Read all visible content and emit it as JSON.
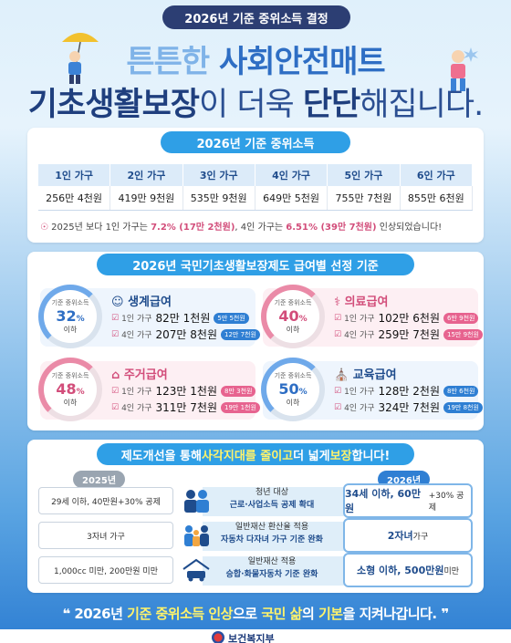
{
  "banner": "2026년 기준 중위소득 결정",
  "hero": {
    "line1_a": "튼튼한 ",
    "line1_b": "사회안전매트",
    "line2_a": "기초생활보장",
    "line2_b": "이 더욱 ",
    "line2_c": "단단",
    "line2_d": "해집니다."
  },
  "income": {
    "title": "2026년 기준 중위소득",
    "headers": [
      "1인 가구",
      "2인 가구",
      "3인 가구",
      "4인 가구",
      "5인 가구",
      "6인 가구"
    ],
    "values": [
      "256만 4천원",
      "419만 9천원",
      "535만 9천원",
      "649만 5천원",
      "755만 7천원",
      "855만 6천원"
    ],
    "note_a": "2025년 보다 1인 가구는 ",
    "note_b": "7.2% (17만 2천원)",
    "note_c": ", 4인 가구는 ",
    "note_d": "6.51% (39만 7천원)",
    "note_e": " 인상되었습니다!"
  },
  "benefits": {
    "title": "2026년 국민기초생활보장제도 급여별 선정 기준",
    "items": [
      {
        "name": "생계급여",
        "label": "기준 중위소득",
        "pct": "32",
        "sub": "이하",
        "r1_label": "1인 가구",
        "r1_amt": "82만 1천원",
        "r1_tag": "5만 5천원",
        "r2_label": "4인 가구",
        "r2_amt": "207만 8천원",
        "r2_tag": "12만 7천원"
      },
      {
        "name": "의료급여",
        "label": "기준 중위소득",
        "pct": "40",
        "sub": "이하",
        "r1_label": "1인 가구",
        "r1_amt": "102만 6천원",
        "r1_tag": "6만 9천원",
        "r2_label": "4인 가구",
        "r2_amt": "259만 7천원",
        "r2_tag": "15만 9천원"
      },
      {
        "name": "주거급여",
        "label": "기준 중위소득",
        "pct": "48",
        "sub": "이하",
        "r1_label": "1인 가구",
        "r1_amt": "123만 1천원",
        "r1_tag": "8만 3천원",
        "r2_label": "4인 가구",
        "r2_amt": "311만 7천원",
        "r2_tag": "19만 1천원"
      },
      {
        "name": "교육급여",
        "label": "기준 중위소득",
        "pct": "50",
        "sub": "이하",
        "r1_label": "1인 가구",
        "r1_amt": "128만 2천원",
        "r1_tag": "8만 6천원",
        "r2_label": "4인 가구",
        "r2_amt": "324만 7천원",
        "r2_tag": "19만 8천원"
      }
    ]
  },
  "reform": {
    "title_a": "제도개선을 통해 ",
    "title_b": "사각지대를 줄이고",
    "title_c": " 더 넓게 ",
    "title_d": "보장",
    "title_e": "합니다!",
    "year_old": "2025년",
    "year_new": "2026년",
    "rows": [
      {
        "old": "29세 이하, 40만원+30% 공제",
        "mid1": "청년 대상",
        "mid2": "근로·사업소득 공제 확대",
        "new_a": "34세 이하, 60만원",
        "new_b": "+30% 공제"
      },
      {
        "old": "3자녀 가구",
        "mid1": "일반재산 환산율 적용",
        "mid2": "자동차 다자녀 가구 기준 완화",
        "new_a": "2자녀",
        "new_b": " 가구"
      },
      {
        "old": "1,000cc 미만, 200만원 미만",
        "mid1": "일반재산 적용",
        "mid2": "승합·화물자동차 기준 완화",
        "new_a": "소형 이하, 500만원",
        "new_b": " 미만"
      }
    ]
  },
  "footer": {
    "a": "2026년 ",
    "b": "기준 중위소득 인상",
    "c": "으로 ",
    "d": "국민 삶",
    "e": "의 ",
    "f": "기본",
    "g": "을 지켜나갑니다."
  },
  "ministry": "보건복지부",
  "colors": {
    "navy": "#1f3f7e",
    "accent_blue": "#2f9fe6",
    "pink": "#d24d7a"
  }
}
